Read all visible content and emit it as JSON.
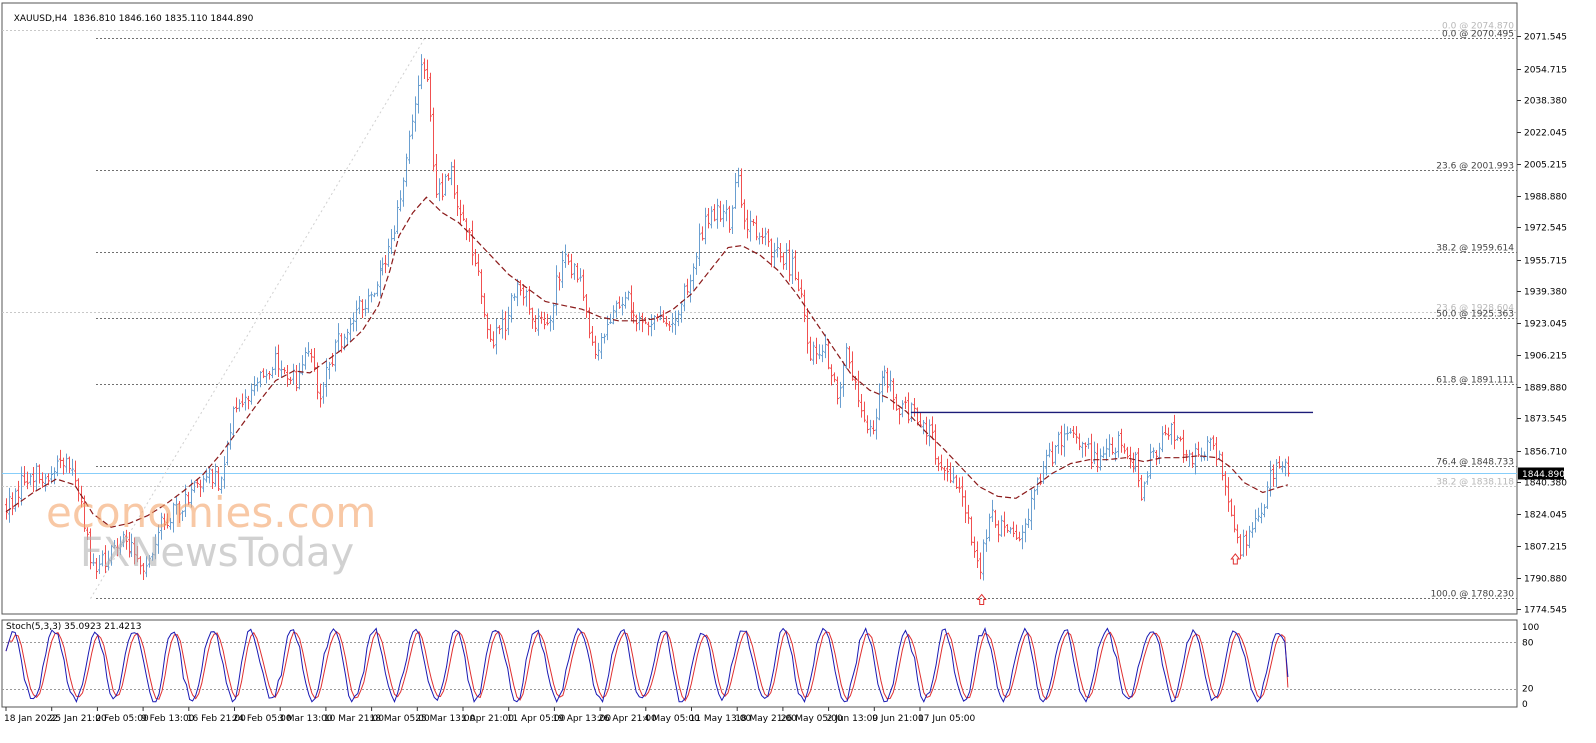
{
  "header": {
    "symbol": "XAUUSD,H4",
    "ohlc": "1836.810 1846.160 1835.110 1844.890"
  },
  "watermark": {
    "brand": "economies.com",
    "brand_color": "#f4a46a",
    "subbrand": "FXNewsToday",
    "subbrand_color": "#b4b4b4"
  },
  "colors": {
    "up": "#6a9fd0",
    "down": "#f05050",
    "ma": "#8b1a1a",
    "resistance": "#1c1c78",
    "stoch_main": "#1a1ab4",
    "stoch_signal": "#e03030",
    "price_tag_bg": "#000000",
    "price_line": "#87cefa"
  },
  "chart_data": [
    {
      "type": "candlestick",
      "symbol": "XAUUSD",
      "timeframe": "H4",
      "ylim": [
        1772,
        2082
      ],
      "last_price": 1844.89,
      "y_ticks": [
        2071.545,
        2054.715,
        2038.38,
        2022.045,
        2005.215,
        1988.88,
        1972.545,
        1955.715,
        1939.38,
        1923.045,
        1906.215,
        1889.88,
        1873.545,
        1856.71,
        1840.38,
        1824.045,
        1807.215,
        1790.88,
        1774.545
      ],
      "x_labels": [
        "18 Jan 2022",
        "25 Jan 21:00",
        "2 Feb 05:00",
        "9 Feb 13:00",
        "16 Feb 21:00",
        "24 Feb 05:00",
        "3 Mar 13:00",
        "10 Mar 21:00",
        "18 Mar 05:00",
        "25 Mar 13:00",
        "1 Apr 21:00",
        "11 Apr 05:00",
        "19 Apr 13:00",
        "26 Apr 21:00",
        "4 May 05:00",
        "11 May 13:00",
        "18 May 21:00",
        "26 May 05:00",
        "2 Jun 13:00",
        "9 Jun 21:00",
        "17 Jun 05:00"
      ],
      "fib_levels": [
        {
          "label": "0.0 @ 2074.870",
          "price": 2074.87,
          "faded": true
        },
        {
          "label": "0.0 @ 2070.495",
          "price": 2070.495,
          "faded": false
        },
        {
          "label": "23.6 @ 2001.993",
          "price": 2001.993,
          "faded": false
        },
        {
          "label": "38.2 @ 1959.614",
          "price": 1959.614,
          "faded": false
        },
        {
          "label": "23.6 @ 1928.604",
          "price": 1928.604,
          "faded": true
        },
        {
          "label": "50.0 @ 1925.363",
          "price": 1925.363,
          "faded": false
        },
        {
          "label": "61.8 @ 1891.111",
          "price": 1891.111,
          "faded": false
        },
        {
          "label": "76.4 @ 1848.733",
          "price": 1848.733,
          "faded": false
        },
        {
          "label": "38.2 @ 1838.118",
          "price": 1838.118,
          "faded": true
        },
        {
          "label": "100.0 @ 1780.230",
          "price": 1780.23,
          "faded": false
        }
      ],
      "resistance_line": {
        "price": 1876.5,
        "from_index": 19.8,
        "to_index": 28.6
      },
      "support_arrows": [
        {
          "index": 21.35,
          "price": 1779
        },
        {
          "index": 26.9,
          "price": 1800
        }
      ],
      "anchors": [
        [
          0,
          1826
        ],
        [
          0.4,
          1841
        ],
        [
          1.1,
          1848
        ],
        [
          1.45,
          1851
        ],
        [
          1.65,
          1830
        ],
        [
          1.85,
          1795
        ],
        [
          2.3,
          1805
        ],
        [
          2.6,
          1812
        ],
        [
          3.05,
          1795
        ],
        [
          3.4,
          1820
        ],
        [
          3.8,
          1828
        ],
        [
          4.2,
          1838
        ],
        [
          4.45,
          1845
        ],
        [
          4.7,
          1840
        ],
        [
          4.95,
          1875
        ],
        [
          5.2,
          1884
        ],
        [
          5.55,
          1895
        ],
        [
          5.9,
          1903
        ],
        [
          6.35,
          1894
        ],
        [
          6.65,
          1912
        ],
        [
          6.8,
          1883
        ],
        [
          7.25,
          1912
        ],
        [
          7.6,
          1927
        ],
        [
          8.1,
          1940
        ],
        [
          8.4,
          1962
        ],
        [
          8.7,
          1999
        ],
        [
          8.9,
          2027
        ],
        [
          9.1,
          2062
        ],
        [
          9.25,
          2040
        ],
        [
          9.4,
          1985
        ],
        [
          9.7,
          2002
        ],
        [
          10.0,
          1977
        ],
        [
          10.3,
          1953
        ],
        [
          10.6,
          1912
        ],
        [
          10.9,
          1922
        ],
        [
          11.2,
          1945
        ],
        [
          11.55,
          1923
        ],
        [
          11.9,
          1928
        ],
        [
          12.2,
          1962
        ],
        [
          12.6,
          1940
        ],
        [
          12.85,
          1906
        ],
        [
          13.1,
          1920
        ],
        [
          13.5,
          1938
        ],
        [
          13.9,
          1922
        ],
        [
          14.3,
          1926
        ],
        [
          14.6,
          1924
        ],
        [
          14.9,
          1940
        ],
        [
          15.3,
          1975
        ],
        [
          15.6,
          1983
        ],
        [
          15.85,
          1974
        ],
        [
          16.0,
          1999
        ],
        [
          16.2,
          1975
        ],
        [
          16.5,
          1966
        ],
        [
          16.9,
          1960
        ],
        [
          17.3,
          1948
        ],
        [
          17.6,
          1905
        ],
        [
          17.9,
          1909
        ],
        [
          18.2,
          1884
        ],
        [
          18.4,
          1911
        ],
        [
          18.7,
          1875
        ],
        [
          18.95,
          1868
        ],
        [
          19.2,
          1896
        ],
        [
          19.5,
          1880
        ],
        [
          19.8,
          1876
        ],
        [
          20.1,
          1870
        ],
        [
          20.4,
          1854
        ],
        [
          20.7,
          1844
        ],
        [
          20.9,
          1836
        ],
        [
          21.05,
          1822
        ],
        [
          21.3,
          1790
        ],
        [
          21.5,
          1823
        ],
        [
          21.8,
          1816
        ],
        [
          22.1,
          1812
        ],
        [
          22.3,
          1822
        ],
        [
          22.6,
          1843
        ],
        [
          22.9,
          1856
        ],
        [
          23.2,
          1868
        ],
        [
          23.5,
          1862
        ],
        [
          23.8,
          1852
        ],
        [
          24.1,
          1860
        ],
        [
          24.4,
          1862
        ],
        [
          24.7,
          1852
        ],
        [
          24.85,
          1832
        ],
        [
          25.05,
          1852
        ],
        [
          25.4,
          1869
        ],
        [
          25.8,
          1853
        ],
        [
          26.1,
          1854
        ],
        [
          26.4,
          1860
        ],
        [
          26.6,
          1848
        ],
        [
          26.85,
          1820
        ],
        [
          27.0,
          1806
        ],
        [
          27.3,
          1821
        ],
        [
          27.55,
          1832
        ],
        [
          27.8,
          1854
        ],
        [
          28.05,
          1844
        ]
      ],
      "ma_points": [
        [
          0,
          1825
        ],
        [
          0.6,
          1835
        ],
        [
          1.1,
          1842
        ],
        [
          1.5,
          1839
        ],
        [
          1.9,
          1824
        ],
        [
          2.3,
          1817
        ],
        [
          2.7,
          1819
        ],
        [
          3.1,
          1823
        ],
        [
          3.5,
          1829
        ],
        [
          3.9,
          1836
        ],
        [
          4.3,
          1844
        ],
        [
          4.7,
          1855
        ],
        [
          5.1,
          1868
        ],
        [
          5.5,
          1881
        ],
        [
          5.9,
          1893
        ],
        [
          6.3,
          1898
        ],
        [
          6.65,
          1897
        ],
        [
          7.0,
          1903
        ],
        [
          7.4,
          1910
        ],
        [
          7.8,
          1919
        ],
        [
          8.15,
          1932
        ],
        [
          8.4,
          1950
        ],
        [
          8.6,
          1968
        ],
        [
          8.9,
          1980
        ],
        [
          9.2,
          1988
        ],
        [
          9.55,
          1980
        ],
        [
          9.9,
          1975
        ],
        [
          10.2,
          1968
        ],
        [
          10.6,
          1958
        ],
        [
          11.0,
          1948
        ],
        [
          11.4,
          1941
        ],
        [
          11.8,
          1934
        ],
        [
          12.2,
          1932
        ],
        [
          12.6,
          1930
        ],
        [
          13.0,
          1926
        ],
        [
          13.4,
          1924
        ],
        [
          13.8,
          1924
        ],
        [
          14.2,
          1925
        ],
        [
          14.6,
          1930
        ],
        [
          15.0,
          1938
        ],
        [
          15.4,
          1950
        ],
        [
          15.8,
          1962
        ],
        [
          16.1,
          1963
        ],
        [
          16.5,
          1958
        ],
        [
          16.9,
          1950
        ],
        [
          17.3,
          1938
        ],
        [
          17.7,
          1924
        ],
        [
          18.1,
          1910
        ],
        [
          18.5,
          1896
        ],
        [
          18.9,
          1888
        ],
        [
          19.3,
          1884
        ],
        [
          19.7,
          1877
        ],
        [
          20.1,
          1867
        ],
        [
          20.5,
          1858
        ],
        [
          20.9,
          1848
        ],
        [
          21.3,
          1838
        ],
        [
          21.7,
          1833
        ],
        [
          22.1,
          1832
        ],
        [
          22.5,
          1838
        ],
        [
          22.9,
          1845
        ],
        [
          23.3,
          1850
        ],
        [
          23.7,
          1852
        ],
        [
          24.1,
          1852
        ],
        [
          24.5,
          1853
        ],
        [
          24.9,
          1851
        ],
        [
          25.3,
          1853
        ],
        [
          25.7,
          1853
        ],
        [
          26.1,
          1854
        ],
        [
          26.5,
          1853
        ],
        [
          26.8,
          1848
        ],
        [
          27.1,
          1840
        ],
        [
          27.5,
          1835
        ],
        [
          27.9,
          1838
        ],
        [
          28.05,
          1839
        ]
      ],
      "trend_line": [
        [
          1.85,
          1780
        ],
        [
          9.15,
          2070
        ]
      ]
    },
    {
      "type": "line",
      "name": "Stoch(5,3,3) 35.0923 21.4213",
      "ylim": [
        0,
        100
      ],
      "y_ticks": [
        100,
        80,
        20,
        0
      ],
      "levels": [
        80,
        20
      ],
      "series": [
        {
          "name": "main",
          "value": 35.0923
        },
        {
          "name": "signal",
          "value": 21.4213
        }
      ]
    }
  ]
}
